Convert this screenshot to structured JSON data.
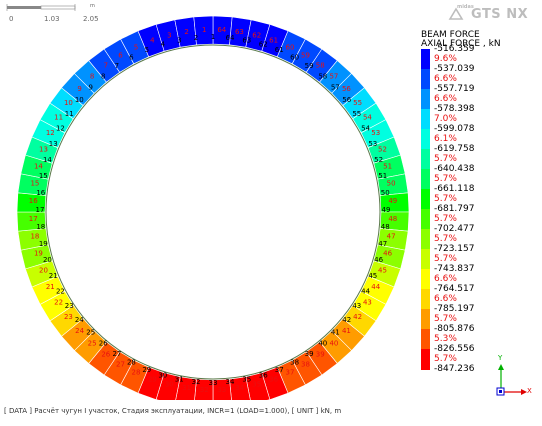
{
  "scale_bar": {
    "ticks": [
      "0",
      "1.03",
      "2.05"
    ],
    "unit": "m"
  },
  "logo": {
    "brand_small": "midas",
    "brand_main": "GTS NX"
  },
  "legend": {
    "title_line1": "BEAM FORCE",
    "title_line2": "AXIAL FORCE , kN",
    "values": [
      "-516.359",
      "-537.039",
      "-557.719",
      "-578.398",
      "-599.078",
      "-619.758",
      "-640.438",
      "-661.118",
      "-681.797",
      "-702.477",
      "-723.157",
      "-743.837",
      "-764.517",
      "-785.197",
      "-805.876",
      "-826.556",
      "-847.236"
    ],
    "percentages": [
      "9.6%",
      "6.6%",
      "6.6%",
      "7.0%",
      "6.1%",
      "5.7%",
      "5.7%",
      "5.7%",
      "5.7%",
      "5.7%",
      "5.7%",
      "6.6%",
      "6.6%",
      "5.7%",
      "5.3%",
      "5.7%"
    ],
    "colors": [
      "#0000ff",
      "#0049ff",
      "#0092ff",
      "#00ddff",
      "#00ffe0",
      "#00ffa0",
      "#00ff60",
      "#00ff00",
      "#46ff00",
      "#8cff00",
      "#c8ff00",
      "#ffff00",
      "#ffd800",
      "#ff9c00",
      "#ff5500",
      "#ff0000"
    ]
  },
  "ring": {
    "element_numbers": [
      "1",
      "2",
      "3",
      "4",
      "5",
      "6",
      "7",
      "8",
      "9",
      "10",
      "11",
      "12",
      "13",
      "14",
      "15",
      "16",
      "17",
      "18",
      "19",
      "20",
      "21",
      "22",
      "23",
      "24",
      "25",
      "26",
      "27",
      "28",
      "29",
      "30",
      "31",
      "32",
      "33",
      "34",
      "35",
      "36",
      "37",
      "38",
      "39",
      "40",
      "41",
      "42",
      "43",
      "44",
      "45",
      "46",
      "47",
      "48",
      "49",
      "50",
      "51",
      "52",
      "53",
      "54",
      "55",
      "56",
      "57",
      "58",
      "59",
      "60",
      "61",
      "62",
      "63",
      "64"
    ],
    "node_numbers": [
      "1",
      "2",
      "3",
      "4",
      "5",
      "6",
      "7",
      "8",
      "9",
      "10",
      "11",
      "12",
      "13",
      "14",
      "15",
      "16",
      "17",
      "18",
      "19",
      "20",
      "21",
      "22",
      "23",
      "24",
      "25",
      "26",
      "27",
      "28",
      "29",
      "30",
      "31",
      "32",
      "33",
      "34",
      "35",
      "36",
      "37",
      "38",
      "39",
      "40",
      "41",
      "42",
      "43",
      "44",
      "45",
      "46",
      "47",
      "48",
      "49",
      "50",
      "51",
      "52",
      "53",
      "54",
      "55",
      "56",
      "57",
      "58",
      "59",
      "60",
      "61",
      "62",
      "63",
      "64"
    ]
  },
  "axis_triad": {
    "y_label": "Y",
    "x_label": "X",
    "z_label": "Z"
  },
  "status": {
    "data_tag": "[ DATA ]",
    "data_text": "Расчёт чугун I участок,  Стадия эксплуатации,  INCR=1 (LOAD=1.000),",
    "unit_tag": "[ UNIT ]",
    "unit_text": "kN,  m"
  }
}
